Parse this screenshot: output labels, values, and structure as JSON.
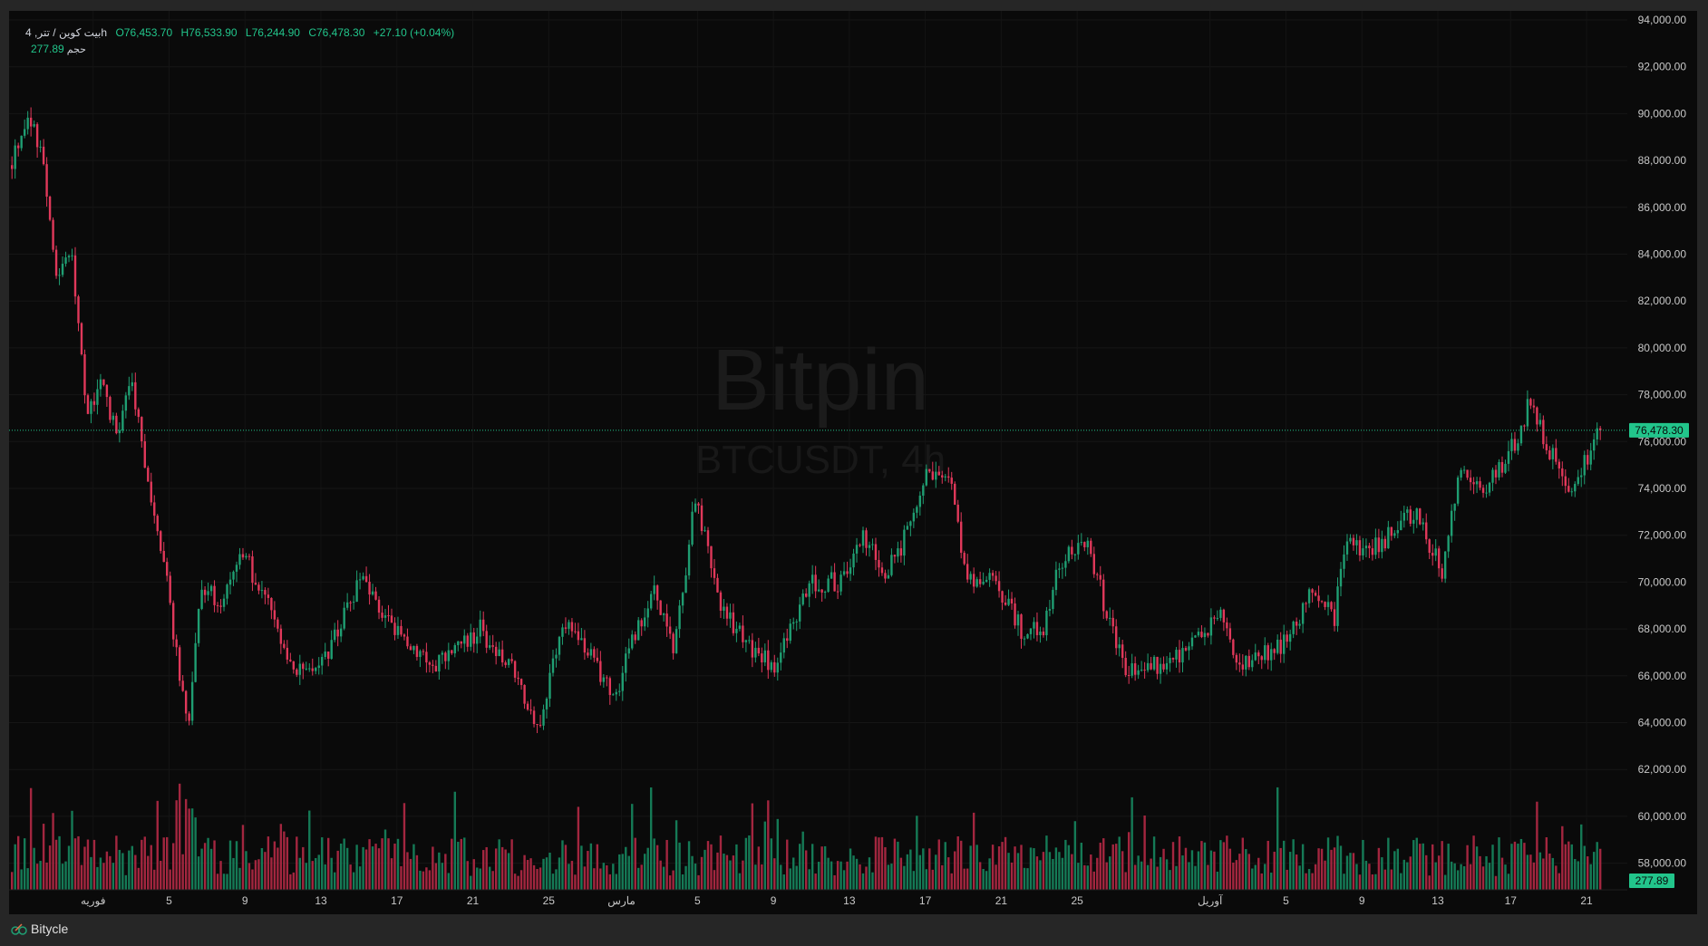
{
  "legend": {
    "symbol": "بیت کوین / تتر, 4h",
    "open": "O76,453.70",
    "high": "H76,533.90",
    "low": "L76,244.90",
    "close": "C76,478.30",
    "change": "+27.10 (+0.04%)",
    "volume_label": "حجم",
    "volume_value": "277.89"
  },
  "watermark": {
    "brand": "Bitpin",
    "symbol": "BTCUSDT, 4h"
  },
  "current_price_tag": "76,478.30",
  "current_volume_tag": "277.89",
  "footer": {
    "brand": "Bitycle"
  },
  "colors": {
    "up": "#1f9e72",
    "down": "#e0385a",
    "accent": "#22c58b",
    "vol_up": "#157a56",
    "vol_down": "#a3263f"
  },
  "chart_data": {
    "type": "candlestick",
    "symbol": "BTCUSDT",
    "interval": "4h",
    "candle_count": 503,
    "ylim": [
      57000,
      94500
    ],
    "y_ticks": [
      "94,000.00",
      "92,000.00",
      "90,000.00",
      "88,000.00",
      "86,000.00",
      "84,000.00",
      "82,000.00",
      "80,000.00",
      "78,000.00",
      "76,000.00",
      "74,000.00",
      "72,000.00",
      "70,000.00",
      "68,000.00",
      "66,000.00",
      "64,000.00",
      "62,000.00",
      "60,000.00",
      "58,000.00"
    ],
    "y_tick_values": [
      94000,
      92000,
      90000,
      88000,
      86000,
      84000,
      82000,
      80000,
      78000,
      76000,
      74000,
      72000,
      70000,
      68000,
      66000,
      64000,
      62000,
      60000,
      58000
    ],
    "x_ticks": [
      {
        "label": "فوریه",
        "index": 26
      },
      {
        "label": "5",
        "index": 50
      },
      {
        "label": "9",
        "index": 74
      },
      {
        "label": "13",
        "index": 98
      },
      {
        "label": "17",
        "index": 122
      },
      {
        "label": "21",
        "index": 146
      },
      {
        "label": "25",
        "index": 170
      },
      {
        "label": "مارس",
        "index": 193
      },
      {
        "label": "5",
        "index": 217
      },
      {
        "label": "9",
        "index": 241
      },
      {
        "label": "13",
        "index": 265
      },
      {
        "label": "17",
        "index": 289
      },
      {
        "label": "21",
        "index": 313
      },
      {
        "label": "25",
        "index": 337
      },
      {
        "label": "آوریل",
        "index": 379
      },
      {
        "label": "5",
        "index": 403
      },
      {
        "label": "9",
        "index": 427
      },
      {
        "label": "13",
        "index": 451
      },
      {
        "label": "17",
        "index": 474
      },
      {
        "label": "21",
        "index": 498
      }
    ],
    "price_path_waypoints": [
      [
        0,
        88000
      ],
      [
        5,
        90000
      ],
      [
        10,
        88000
      ],
      [
        14,
        83000
      ],
      [
        19,
        84000
      ],
      [
        24,
        77000
      ],
      [
        28,
        78500
      ],
      [
        33,
        76500
      ],
      [
        38,
        78500
      ],
      [
        43,
        74000
      ],
      [
        48,
        71000
      ],
      [
        53,
        66000
      ],
      [
        56,
        64000
      ],
      [
        60,
        70000
      ],
      [
        66,
        69000
      ],
      [
        72,
        71500
      ],
      [
        83,
        68500
      ],
      [
        90,
        66000
      ],
      [
        100,
        67000
      ],
      [
        110,
        70000
      ],
      [
        121,
        68000
      ],
      [
        134,
        66500
      ],
      [
        148,
        68000
      ],
      [
        159,
        66000
      ],
      [
        166,
        63500
      ],
      [
        174,
        68500
      ],
      [
        183,
        67000
      ],
      [
        190,
        65000
      ],
      [
        195,
        67000
      ],
      [
        203,
        69500
      ],
      [
        209,
        67000
      ],
      [
        216,
        73500
      ],
      [
        224,
        69000
      ],
      [
        234,
        67000
      ],
      [
        241,
        66500
      ],
      [
        252,
        70000
      ],
      [
        262,
        70000
      ],
      [
        269,
        72000
      ],
      [
        276,
        70500
      ],
      [
        283,
        72000
      ],
      [
        289,
        74500
      ],
      [
        297,
        74000
      ],
      [
        302,
        70000
      ],
      [
        310,
        70000
      ],
      [
        319,
        68000
      ],
      [
        326,
        68000
      ],
      [
        331,
        71000
      ],
      [
        340,
        71500
      ],
      [
        352,
        66000
      ],
      [
        362,
        66500
      ],
      [
        369,
        67000
      ],
      [
        383,
        68500
      ],
      [
        388,
        66500
      ],
      [
        403,
        67500
      ],
      [
        410,
        69500
      ],
      [
        418,
        68500
      ],
      [
        421,
        71500
      ],
      [
        431,
        71500
      ],
      [
        443,
        73000
      ],
      [
        452,
        70500
      ],
      [
        457,
        74500
      ],
      [
        466,
        74000
      ],
      [
        478,
        76500
      ],
      [
        479,
        78000
      ],
      [
        486,
        75500
      ],
      [
        493,
        74000
      ],
      [
        502,
        76478.3
      ]
    ],
    "last_close": 76478.3,
    "last_volume": 277.89
  }
}
